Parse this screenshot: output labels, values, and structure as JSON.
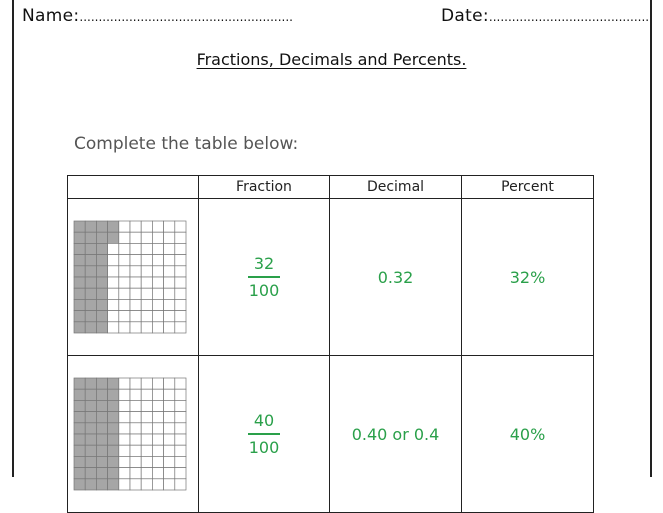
{
  "header": {
    "name_label": "Name:",
    "name_dots": "........................................................",
    "date_label": "Date:",
    "date_dots": ".........................................."
  },
  "title": "Fractions, Decimals and Percents.",
  "instruction": "Complete the table below:",
  "table": {
    "headers": [
      "",
      "Fraction",
      "Decimal",
      "Percent"
    ],
    "rows": [
      {
        "shaded_squares": 32,
        "numerator": "32",
        "denominator": "100",
        "decimal": "0.32",
        "percent": "32%"
      },
      {
        "shaded_squares": 40,
        "numerator": "40",
        "denominator": "100",
        "decimal": "0.40 or 0.4",
        "percent": "40%"
      }
    ]
  },
  "colors": {
    "answer": "#2aa04a",
    "shade": "#a6a6a6",
    "grid_line": "#777777"
  }
}
